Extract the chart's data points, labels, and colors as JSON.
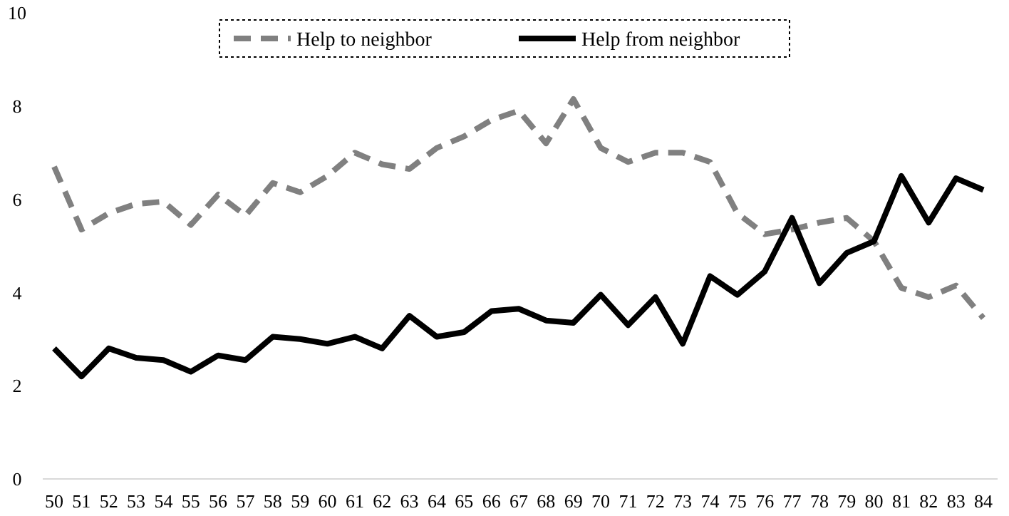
{
  "chart_data": {
    "type": "line",
    "categories": [
      "50",
      "51",
      "52",
      "53",
      "54",
      "55",
      "56",
      "57",
      "58",
      "59",
      "60",
      "61",
      "62",
      "63",
      "64",
      "65",
      "66",
      "67",
      "68",
      "69",
      "70",
      "71",
      "72",
      "73",
      "74",
      "75",
      "76",
      "77",
      "78",
      "79",
      "80",
      "81",
      "82",
      "83",
      "84"
    ],
    "series": [
      {
        "name": "Help to neighbor",
        "color": "#808080",
        "line_style": "dashed",
        "values": [
          6.7,
          5.35,
          5.7,
          5.9,
          5.95,
          5.45,
          6.1,
          5.65,
          6.35,
          6.15,
          6.5,
          7.0,
          6.75,
          6.65,
          7.1,
          7.35,
          7.7,
          7.9,
          7.2,
          8.15,
          7.1,
          6.8,
          7.0,
          7.0,
          6.8,
          5.7,
          5.25,
          5.35,
          5.5,
          5.6,
          5.1,
          4.1,
          3.9,
          4.15,
          3.45
        ]
      },
      {
        "name": "Help from neighbor",
        "color": "#000000",
        "line_style": "solid",
        "values": [
          2.8,
          2.2,
          2.8,
          2.6,
          2.55,
          2.3,
          2.65,
          2.55,
          3.05,
          3.0,
          2.9,
          3.05,
          2.8,
          3.5,
          3.05,
          3.15,
          3.6,
          3.65,
          3.4,
          3.35,
          3.95,
          3.3,
          3.9,
          2.9,
          4.35,
          3.95,
          4.45,
          5.6,
          4.2,
          4.85,
          5.1,
          6.5,
          5.5,
          6.45,
          6.2
        ]
      }
    ],
    "ylim": [
      0,
      10
    ],
    "yticks": [
      0,
      2,
      4,
      6,
      8,
      10
    ],
    "grid": false,
    "legend": "top"
  }
}
